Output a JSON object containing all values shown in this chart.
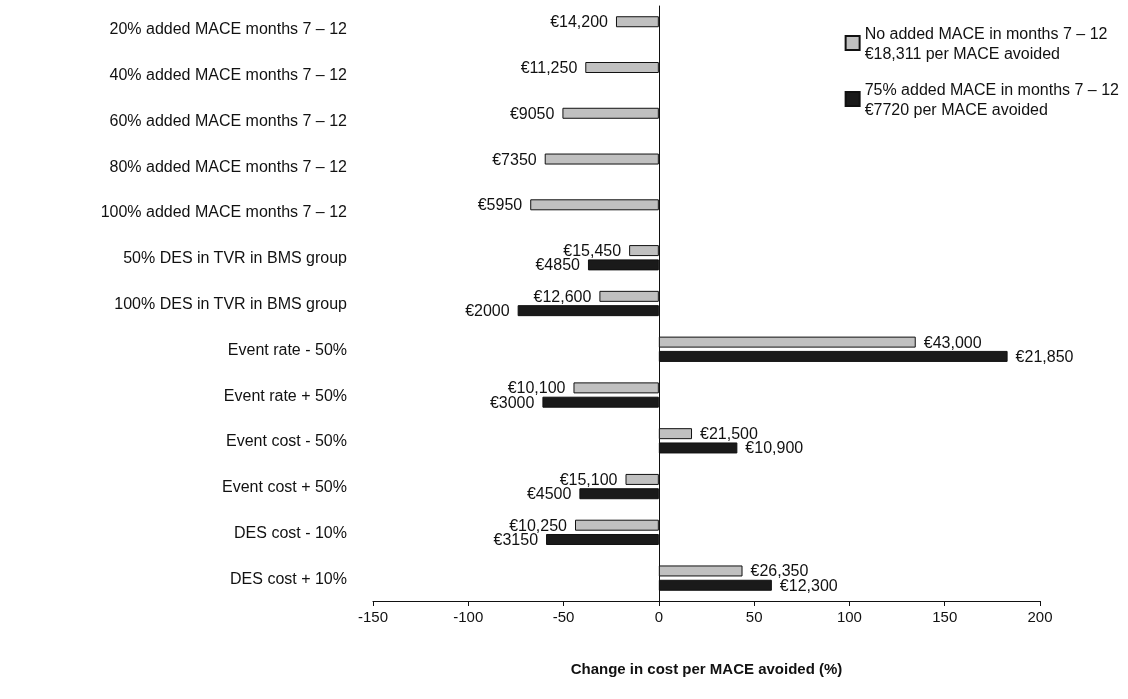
{
  "chart_data": {
    "type": "bar",
    "orientation": "horizontal",
    "xlabel": "Change in cost per MACE avoided (%)",
    "categories": [
      "20% added MACE months 7 – 12",
      "40% added MACE months 7 – 12",
      "60% added MACE months 7 – 12",
      "80% added MACE months 7 – 12",
      "100% added MACE months 7 – 12",
      "50% DES in TVR in BMS group",
      "100% DES in TVR in BMS group",
      "Event rate - 50%",
      "Event rate + 50%",
      "Event cost - 50%",
      "Event cost + 50%",
      "DES cost - 10%",
      "DES cost + 10%"
    ],
    "series": [
      {
        "name": "No added MACE in months 7 – 12\n€18,311 per MACE avoided",
        "color": "#c0c0c0",
        "values": [
          -22.5,
          -38.6,
          -50.6,
          -59.9,
          -67.5,
          -15.6,
          -31.2,
          134.8,
          -44.8,
          17.4,
          -17.5,
          -44.0,
          43.9
        ]
      },
      {
        "name": "75% added MACE in months 7 – 12\n€7720 per MACE avoided",
        "color": "#1a1a1a",
        "values": [
          null,
          null,
          null,
          null,
          null,
          -37.2,
          -74.1,
          183.0,
          -61.1,
          41.2,
          -41.7,
          -59.2,
          59.3
        ]
      }
    ],
    "annotations": [
      {
        "text": "€14,200",
        "x": -22.5,
        "y": "20% added MACE months 7 – 12"
      },
      {
        "text": "€11,250",
        "x": -38.6,
        "y": "40% added MACE months 7 – 12"
      },
      {
        "text": "€9050",
        "x": -50.6,
        "y": "60% added MACE months 7 – 12"
      },
      {
        "text": "€7350",
        "x": -59.9,
        "y": "80% added MACE months 7 – 12"
      },
      {
        "text": "€5950",
        "x": -67.5,
        "y": "100% added MACE months 7 – 12"
      },
      {
        "text": "€15,450",
        "x": -15.6,
        "y": "50% DES in TVR in BMS group"
      },
      {
        "text": "€4850",
        "x": -37.2,
        "y": "50% DES in TVR in BMS group"
      },
      {
        "text": "€12,600",
        "x": -31.2,
        "y": "100% DES in TVR in BMS group"
      },
      {
        "text": "€2000",
        "x": -74.1,
        "y": "100% DES in TVR in BMS group"
      },
      {
        "text": "€43,000",
        "x": 134.8,
        "y": "Event rate - 50%"
      },
      {
        "text": "€21,850",
        "x": 183.0,
        "y": "Event rate - 50%"
      },
      {
        "text": "€10,100",
        "x": -44.8,
        "y": "Event rate + 50%"
      },
      {
        "text": "€3000",
        "x": -61.1,
        "y": "Event rate + 50%"
      },
      {
        "text": "€21,500",
        "x": 17.4,
        "y": "Event cost - 50%"
      },
      {
        "text": "€10,900",
        "x": 41.2,
        "y": "Event cost - 50%"
      },
      {
        "text": "€15,100",
        "x": -17.5,
        "y": "Event cost + 50%"
      },
      {
        "text": "€4500",
        "x": -41.7,
        "y": "Event cost + 50%"
      },
      {
        "text": "€10,250",
        "x": -44.0,
        "y": "DES cost - 10%"
      },
      {
        "text": "€3150",
        "x": -59.2,
        "y": "DES cost - 10%"
      },
      {
        "text": "€26,350",
        "x": 43.9,
        "y": "DES cost + 10%"
      },
      {
        "text": "€12,300",
        "x": 59.3,
        "y": "DES cost + 10%"
      }
    ],
    "xlim": [
      -150,
      200
    ],
    "xticks": [
      -150,
      -100,
      -50,
      0,
      50,
      100,
      150,
      200
    ],
    "legend": "top right"
  }
}
